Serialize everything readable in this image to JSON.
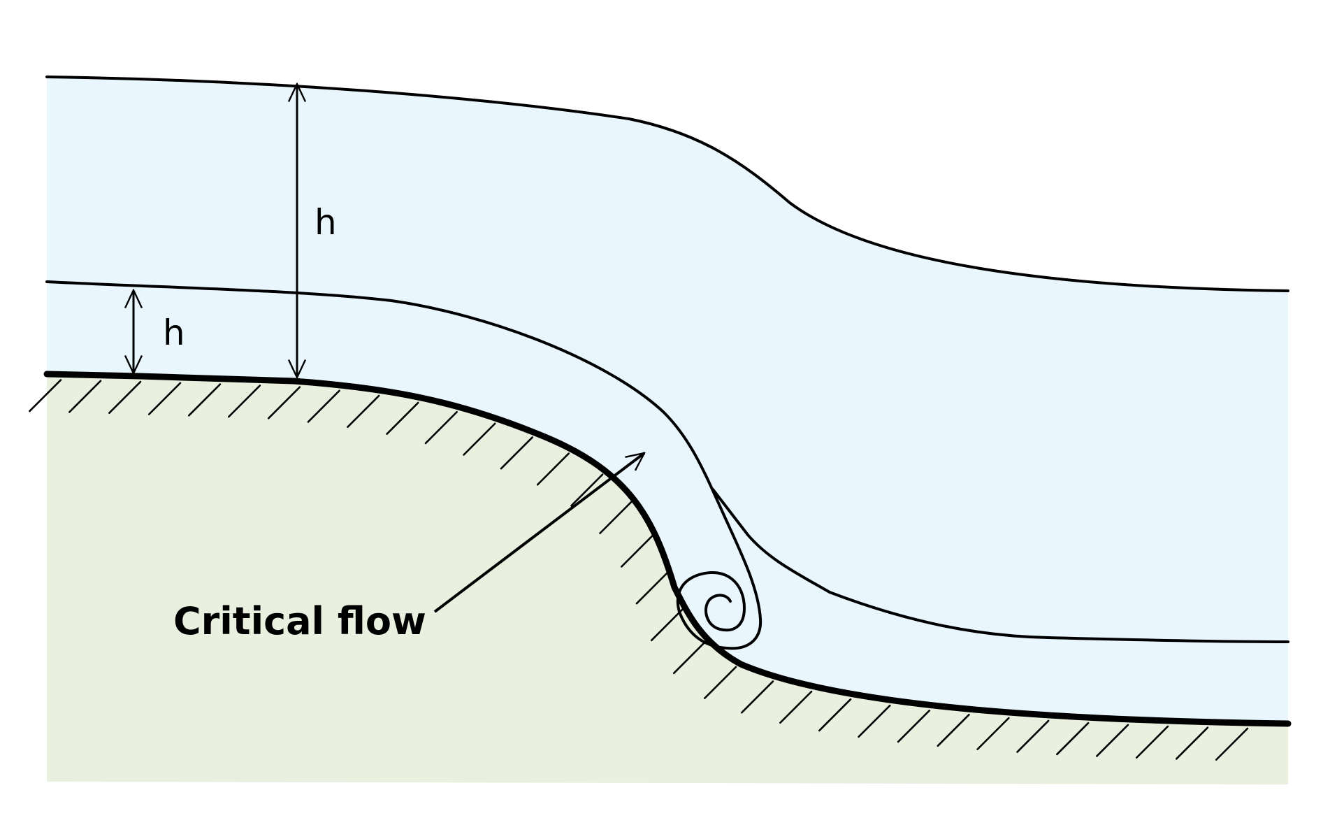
{
  "colors": {
    "water": "#e9f6fd",
    "ground": "#e9f0e0",
    "line": "#000000"
  },
  "labels": {
    "depth_upstream_deep": "h",
    "depth_upstream_shallow": "h",
    "critical_flow": "Critical flow"
  }
}
